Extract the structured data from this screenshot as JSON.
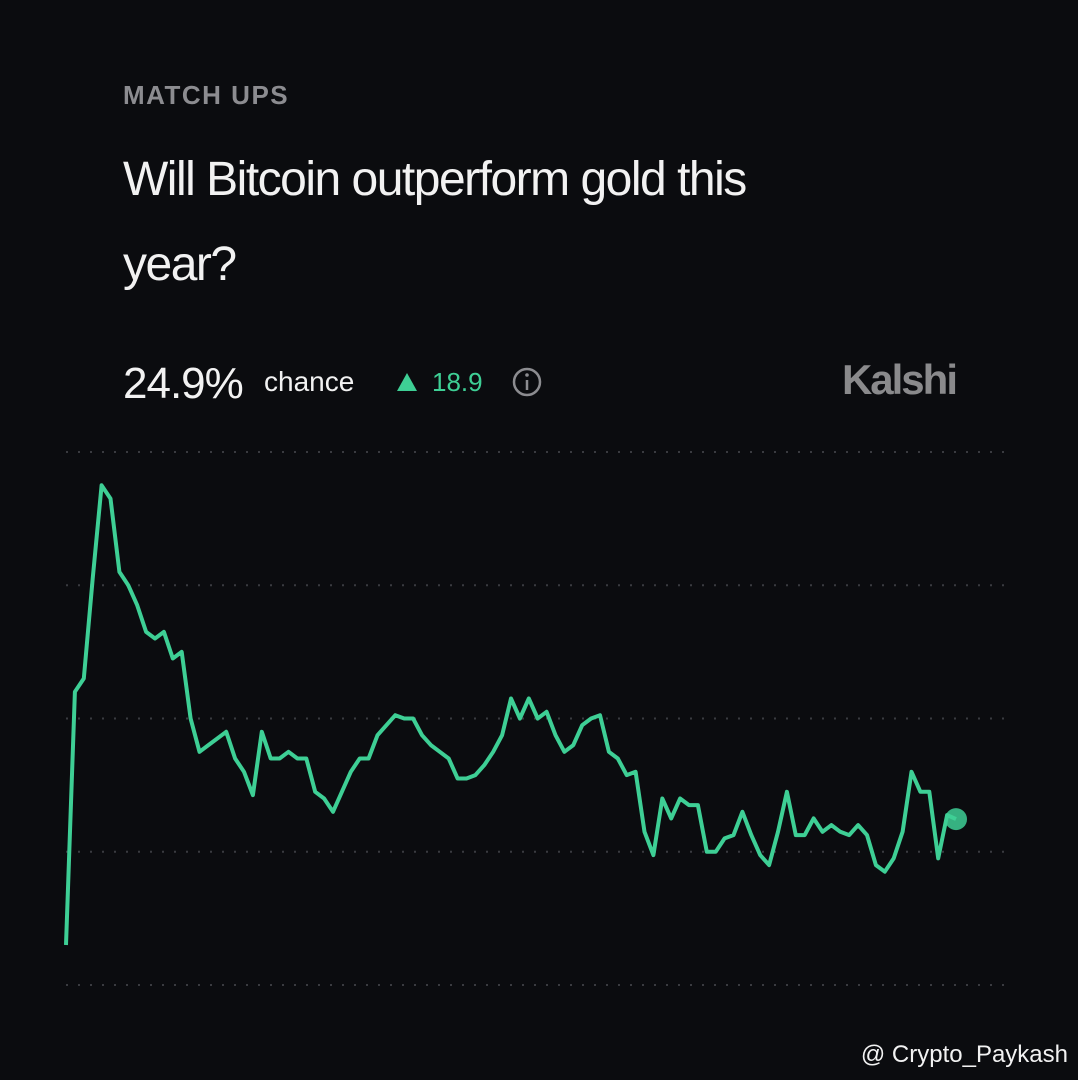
{
  "chart_data": {
    "type": "line",
    "kicker": "MATCH UPS",
    "title_lines": [
      "Will Bitcoin outperform gold this",
      "year?"
    ],
    "current": {
      "value": 24.9,
      "label": "24.9%"
    },
    "current_suffix": "chance",
    "change": 18.9,
    "brand": "Kalshi",
    "watermark": "@ Crypto_Paykash",
    "color": "#3ecf95",
    "ylim": [
      0,
      80
    ],
    "yticks": [
      0,
      20,
      40,
      60,
      80
    ],
    "grid": true,
    "show_tick_labels": false,
    "values": [
      6,
      44,
      46,
      61,
      75,
      73,
      62,
      60,
      57,
      53,
      52,
      53,
      49,
      50,
      40,
      35,
      36,
      37,
      38,
      34,
      32,
      28.5,
      38,
      34,
      34,
      35,
      34,
      34,
      29,
      28,
      26,
      29,
      32,
      34,
      34,
      37.5,
      39,
      40.5,
      40,
      40,
      37.5,
      36,
      35,
      34,
      31,
      31,
      31.5,
      33,
      35,
      37.5,
      43,
      40,
      43,
      40,
      41,
      37.5,
      35,
      36,
      39,
      40,
      40.5,
      35,
      34,
      31.5,
      32,
      23,
      19.5,
      28,
      25,
      28,
      27,
      27,
      20,
      20,
      22,
      22.5,
      26,
      22.5,
      19.5,
      18,
      23,
      29,
      22.5,
      22.5,
      25,
      23,
      24,
      23,
      22.5,
      24,
      22.5,
      18,
      17,
      19,
      23,
      32,
      29,
      29,
      19,
      25.5,
      24.9
    ]
  }
}
